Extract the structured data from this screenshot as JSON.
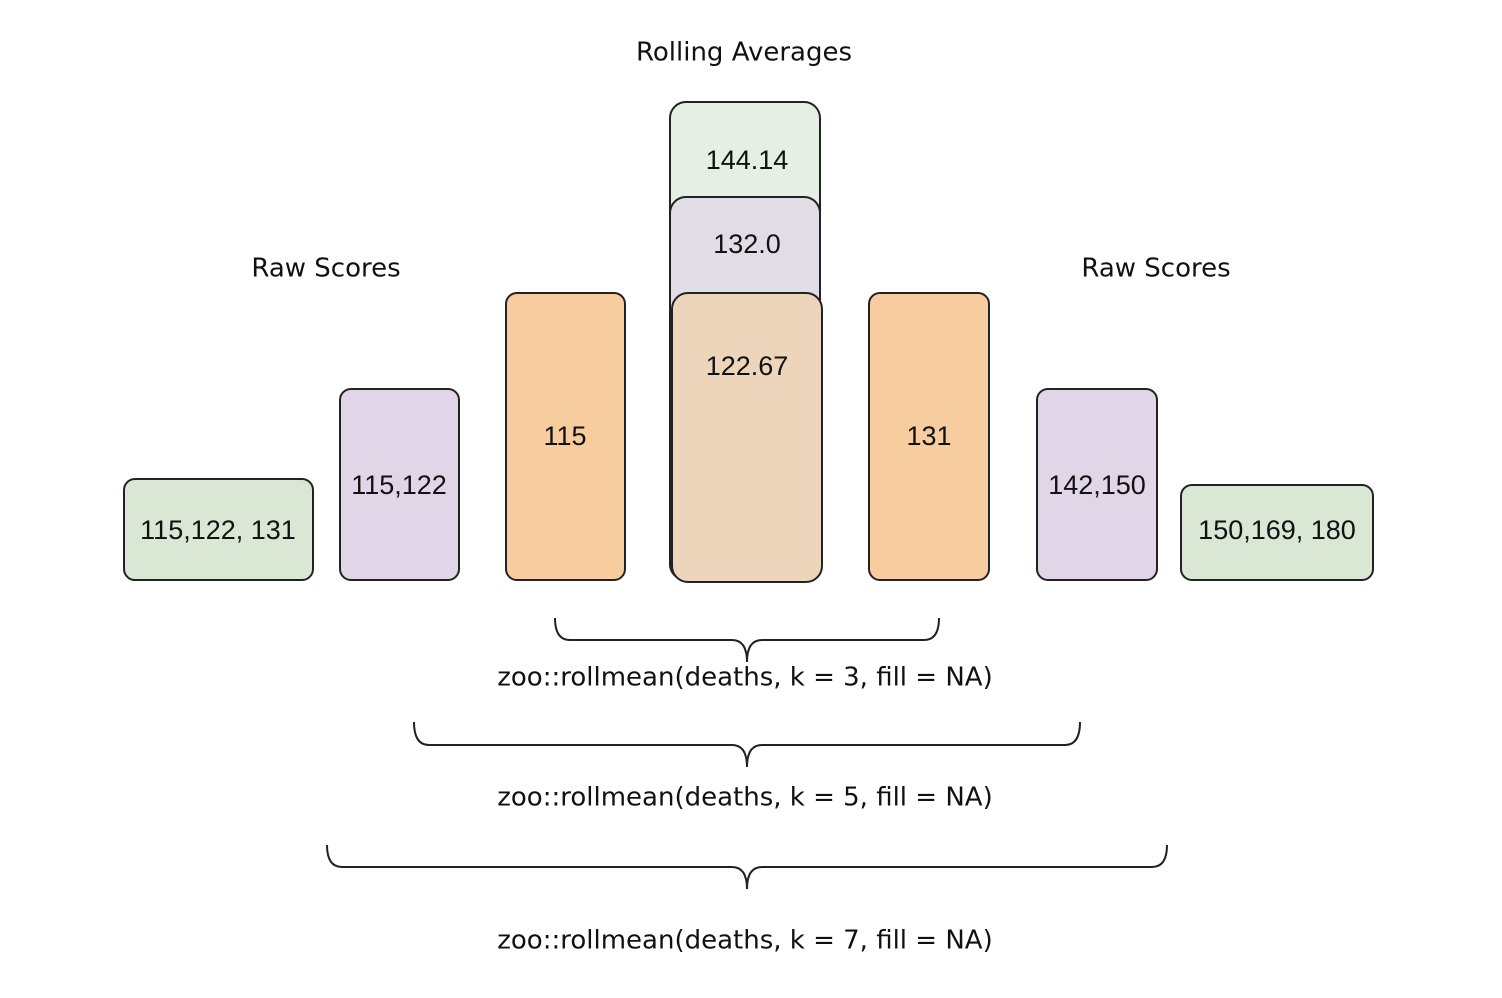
{
  "title": "Rolling Averages",
  "left_heading": "Raw Scores",
  "right_heading": "Raw Scores",
  "boxes": [
    "115,122, 131",
    "115,122",
    "115",
    "144.14",
    "132.0",
    "122.67",
    "131",
    "142,150",
    "150,169, 180"
  ],
  "braces": [
    "zoo::rollmean(deaths, k = 3, fill = NA)",
    "zoo::rollmean(deaths, k = 5, fill = NA)",
    "zoo::rollmean(deaths, k = 7, fill = NA)"
  ]
}
